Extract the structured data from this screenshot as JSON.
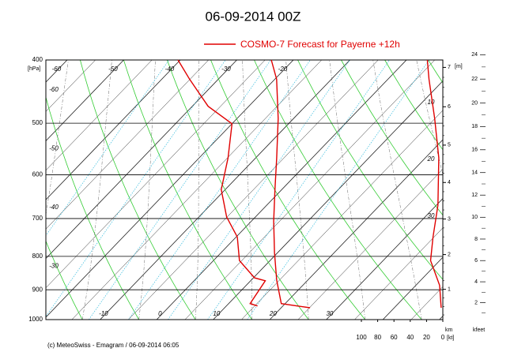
{
  "chart_data": {
    "type": "emagram",
    "title": "06-09-2014  00Z",
    "legend": "COSMO-7 Forecast for Payerne   +12h",
    "footer": "(c) MeteoSwiss - Emagram  /  06-09-2014 06:05",
    "y_unit": "[hPa]",
    "height_unit": "[m]",
    "km_label": "km",
    "kfeet_label": "kfeet",
    "speed_unit": "[kt]",
    "color": "#e00000",
    "ylim": [
      400,
      1000
    ],
    "yticks": [
      400,
      500,
      600,
      700,
      800,
      900,
      1000
    ],
    "xlim": [
      -19.6,
      50.6
    ],
    "tticks_top": [
      -60,
      -50,
      -40,
      -30,
      -20
    ],
    "tticks_left": [
      -60,
      -50,
      -40,
      -30,
      -20
    ],
    "tticks_bottom": [
      -10,
      0,
      10,
      20,
      30
    ],
    "x2lim": [
      100,
      0
    ],
    "x2ticks": [
      100,
      80,
      60,
      40,
      20,
      0
    ],
    "km_ticks": [
      1,
      2,
      3,
      4,
      5,
      6,
      7
    ],
    "kfeet_ticks": [
      2,
      4,
      6,
      8,
      10,
      12,
      14,
      16,
      18,
      20,
      22,
      24
    ],
    "annotations": [
      "10",
      "20",
      "30"
    ],
    "series": [
      {
        "name": "temperature",
        "pressure": [
          400,
          428,
          492,
          565,
          632,
          706,
          789,
          870,
          945,
          953,
          959
        ],
        "values": [
          -23.9,
          -19.7,
          -12.7,
          -6.3,
          -1.2,
          3.9,
          9.4,
          14.5,
          19.3,
          22.5,
          25.1
        ]
      },
      {
        "name": "dew point",
        "pressure": [
          400,
          428,
          471,
          501,
          565,
          632,
          696,
          747,
          812,
          863,
          872,
          945,
          953
        ],
        "values": [
          -40.4,
          -35.1,
          -27.2,
          -20.0,
          -14.9,
          -10.7,
          -5.1,
          0.2,
          4.6,
          10.2,
          12.6,
          13.8,
          15.5
        ]
      },
      {
        "name": "wind speed",
        "axis": "x2",
        "pressure": [
          400,
          428,
          492,
          565,
          668,
          747,
          812,
          886,
          959
        ],
        "values": [
          19,
          17,
          10,
          5,
          6,
          12,
          15,
          4,
          2
        ]
      }
    ]
  }
}
